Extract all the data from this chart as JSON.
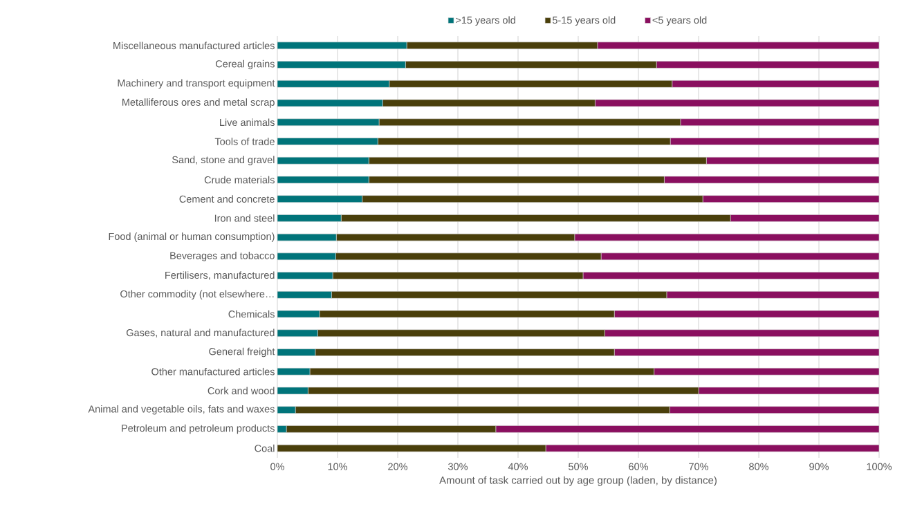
{
  "chart_data": {
    "type": "bar",
    "orientation": "horizontal",
    "stacked": true,
    "xlabel": "Amount of task carried out by age group (laden, by distance)",
    "categories": [
      "Miscellaneous manufactured articles",
      "Cereal grains",
      "Machinery and transport equipment",
      "Metalliferous ores and metal scrap",
      "Live animals",
      "Tools of trade",
      "Sand, stone and gravel",
      "Crude materials",
      "Cement and concrete",
      "Iron and steel",
      "Food (animal or human consumption)",
      "Beverages and tobacco",
      "Fertilisers, manufactured",
      "Other commodity (not elsewhere…",
      "Chemicals",
      "Gases, natural and manufactured",
      "General freight",
      "Other manufactured articles",
      "Cork and wood",
      "Animal and vegetable oils, fats and waxes",
      "Petroleum and petroleum products",
      "Coal"
    ],
    "series": [
      {
        "name": ">15 years old",
        "color": "#00747a",
        "values": [
          21.5,
          21.3,
          18.6,
          17.5,
          16.9,
          16.7,
          15.2,
          15.2,
          14.1,
          10.6,
          9.8,
          9.7,
          9.2,
          9.0,
          7.0,
          6.7,
          6.3,
          5.4,
          5.1,
          3.0,
          1.5,
          0
        ]
      },
      {
        "name": "5-15 years old",
        "color": "#4a3f0b",
        "values": [
          31.7,
          41.7,
          47.0,
          35.3,
          50.1,
          48.6,
          56.1,
          49.1,
          56.6,
          64.7,
          39.6,
          44.1,
          41.6,
          55.7,
          49.0,
          47.7,
          49.7,
          57.2,
          64.9,
          62.2,
          34.8,
          44.6
        ]
      },
      {
        "name": "<5 years old",
        "color": "#8a0f5f",
        "values": [
          46.8,
          37.0,
          34.4,
          47.2,
          33.0,
          34.7,
          28.7,
          35.7,
          29.3,
          24.7,
          50.6,
          46.2,
          49.2,
          35.3,
          44.0,
          45.6,
          44.0,
          37.4,
          30.0,
          34.8,
          63.7,
          55.4
        ]
      }
    ],
    "xlim": [
      0,
      100
    ],
    "xticks": [
      {
        "value": 0,
        "label": "0%"
      },
      {
        "value": 10,
        "label": "10%"
      },
      {
        "value": 20,
        "label": "20%"
      },
      {
        "value": 30,
        "label": "30%"
      },
      {
        "value": 40,
        "label": "40%"
      },
      {
        "value": 50,
        "label": "50%"
      },
      {
        "value": 60,
        "label": "60%"
      },
      {
        "value": 70,
        "label": "70%"
      },
      {
        "value": 80,
        "label": "80%"
      },
      {
        "value": 90,
        "label": "90%"
      },
      {
        "value": 100,
        "label": "100%"
      }
    ],
    "grid": "x",
    "legend": "top"
  }
}
